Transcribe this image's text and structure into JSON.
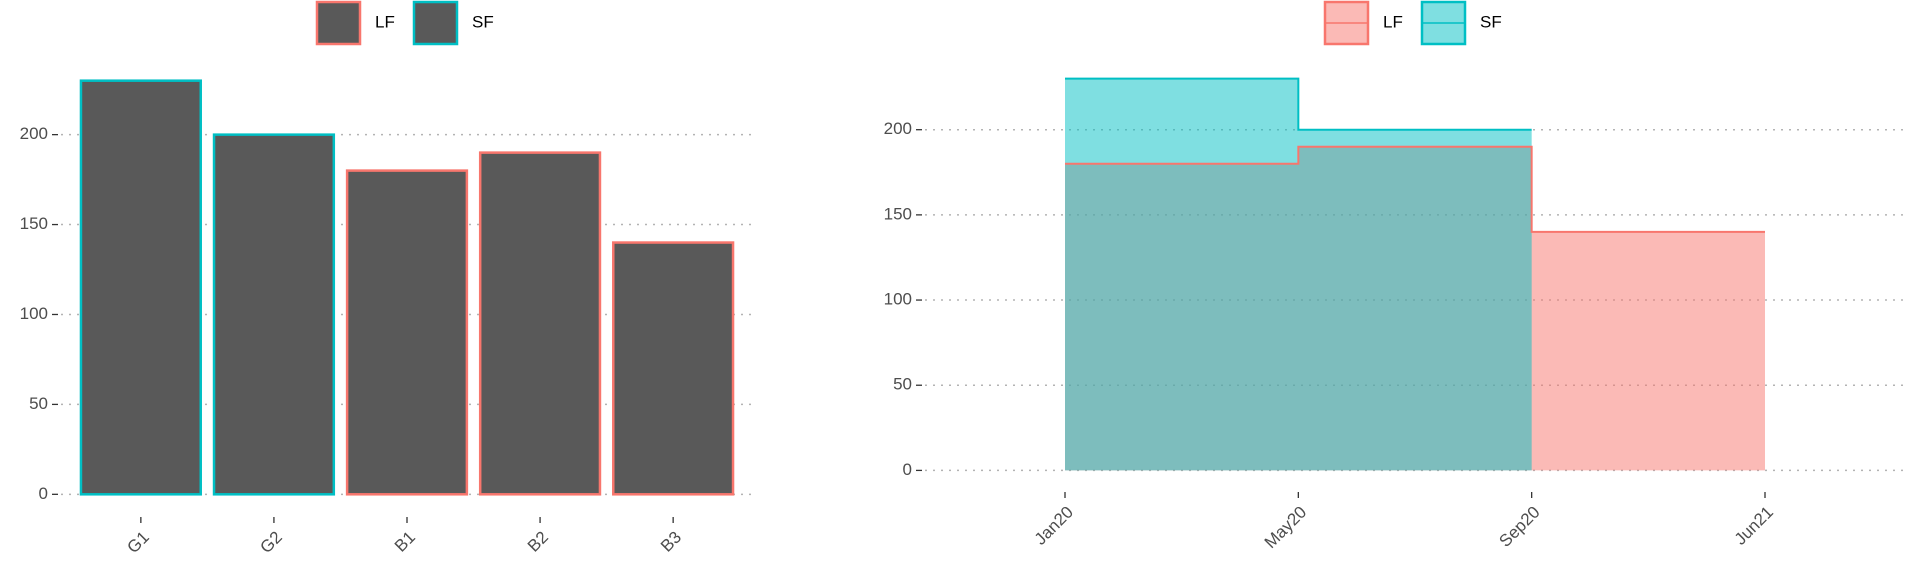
{
  "chart_data": [
    {
      "type": "bar",
      "categories": [
        "G1",
        "G2",
        "B1",
        "B2",
        "B3"
      ],
      "series": [
        {
          "name": "LF",
          "color": "#F8766D",
          "values": [
            null,
            null,
            180,
            190,
            140
          ]
        },
        {
          "name": "SF",
          "color": "#00BFC4",
          "values": [
            230,
            200,
            null,
            null,
            null
          ]
        }
      ],
      "fill": "#595959",
      "ylim": [
        -11.5,
        241.5
      ],
      "yticks": [
        0,
        50,
        100,
        150,
        200
      ],
      "grid": true,
      "legend": "top"
    },
    {
      "type": "area",
      "step": true,
      "categories": [
        "Jan20",
        "May20",
        "Sep20",
        "Jun21"
      ],
      "series": [
        {
          "name": "LF",
          "color": "#F8766D",
          "values": [
            180,
            190,
            140,
            140
          ]
        },
        {
          "name": "SF",
          "color": "#00BFC4",
          "values": [
            230,
            200,
            200,
            null
          ]
        }
      ],
      "ylim": [
        -11.5,
        241.5
      ],
      "yticks": [
        0,
        50,
        100,
        150,
        200
      ],
      "grid": true,
      "legend": "top"
    }
  ]
}
